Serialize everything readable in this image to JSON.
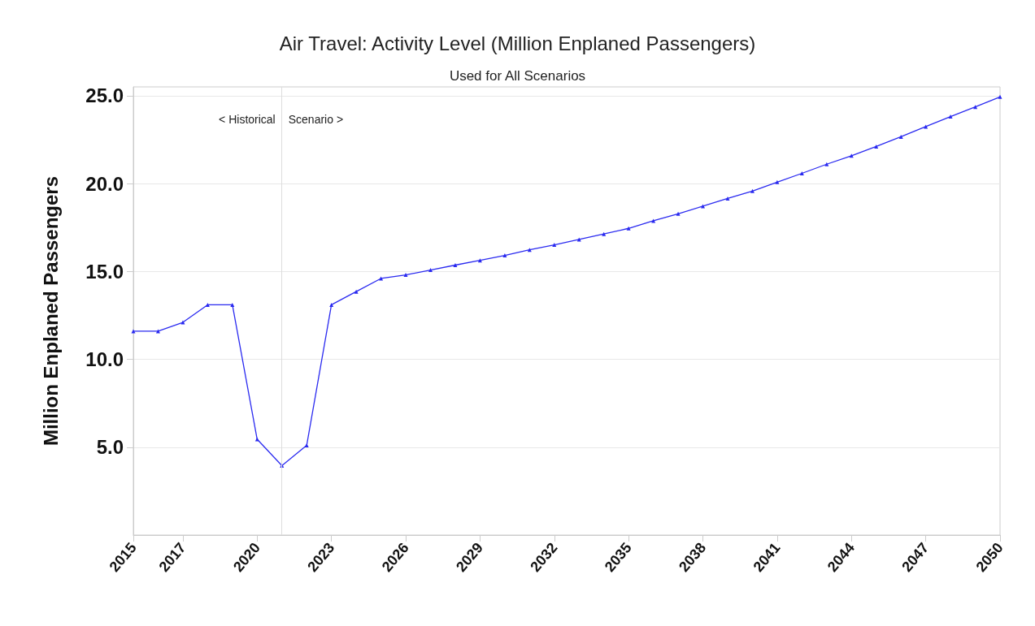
{
  "chart_data": {
    "type": "line",
    "title": "Air Travel: Activity Level (Million Enplaned Passengers)",
    "subtitle": "Used for All Scenarios",
    "ylabel": "Million Enplaned Passengers",
    "x": [
      2015,
      2016,
      2017,
      2018,
      2019,
      2020,
      2021,
      2022,
      2023,
      2024,
      2025,
      2026,
      2027,
      2028,
      2029,
      2030,
      2031,
      2032,
      2033,
      2034,
      2035,
      2036,
      2037,
      2038,
      2039,
      2040,
      2041,
      2042,
      2043,
      2044,
      2045,
      2046,
      2047,
      2048,
      2049,
      2050
    ],
    "series": [
      {
        "color": "#2a2af0",
        "values": [
          11.6,
          11.6,
          12.1,
          13.1,
          13.1,
          5.45,
          3.95,
          5.1,
          13.1,
          13.85,
          14.6,
          14.8,
          15.08,
          15.36,
          15.63,
          15.91,
          16.23,
          16.51,
          16.82,
          17.13,
          17.45,
          17.88,
          18.28,
          18.71,
          19.15,
          19.57,
          20.08,
          20.58,
          21.1,
          21.58,
          22.11,
          22.66,
          23.24,
          23.81,
          24.36,
          24.93
        ]
      }
    ],
    "xlim": [
      2015,
      2050
    ],
    "xticks": [
      2015,
      2017,
      2020,
      2023,
      2026,
      2029,
      2032,
      2035,
      2038,
      2041,
      2044,
      2047,
      2050
    ],
    "ylim": [
      0,
      25.5
    ],
    "yticks": [
      {
        "value": 5,
        "label": "5.0"
      },
      {
        "value": 10,
        "label": "10.0"
      },
      {
        "value": 15,
        "label": "15.0"
      },
      {
        "value": 20,
        "label": "20.0"
      },
      {
        "value": 25,
        "label": "25.0"
      }
    ],
    "ref_lines": [
      {
        "axis": "x",
        "value": 2021,
        "color": "#dddddd"
      }
    ],
    "annotations": [
      "< Historical",
      "Scenario >"
    ],
    "grid": "y",
    "marker": "triangle",
    "line_style": "solid"
  }
}
